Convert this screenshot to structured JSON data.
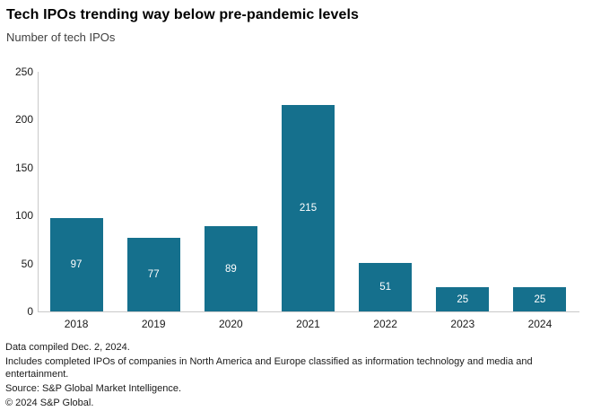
{
  "header": {
    "title": "Tech IPOs trending way below pre-pandemic levels",
    "subtitle": "Number of tech IPOs"
  },
  "chart_data": {
    "type": "bar",
    "title": "Tech IPOs trending way below pre-pandemic levels",
    "subtitle": "Number of tech IPOs",
    "categories": [
      "2018",
      "2019",
      "2020",
      "2021",
      "2022",
      "2023",
      "2024"
    ],
    "values": [
      97,
      77,
      89,
      215,
      51,
      25,
      25
    ],
    "xlabel": "",
    "ylabel": "Number of tech IPOs",
    "ylim": [
      0,
      250
    ],
    "yticks": [
      0,
      50,
      100,
      150,
      200,
      250
    ],
    "grid": false,
    "legend": "none",
    "value_labels": "inside-center-white"
  },
  "colors": {
    "bar": "#15708D",
    "axis_line": "#c9c9c9",
    "title_text": "#000000",
    "subtitle_text": "#3f3f3f",
    "tick_text": "#1a1a1a",
    "value_label_text": "#ffffff",
    "background": "#ffffff"
  },
  "footer": {
    "lines": [
      "Data compiled Dec. 2, 2024.",
      "Includes completed IPOs of companies in North America and Europe classified as information technology and media and entertainment.",
      "Source: S&P Global Market Intelligence.",
      "© 2024 S&P Global."
    ]
  }
}
